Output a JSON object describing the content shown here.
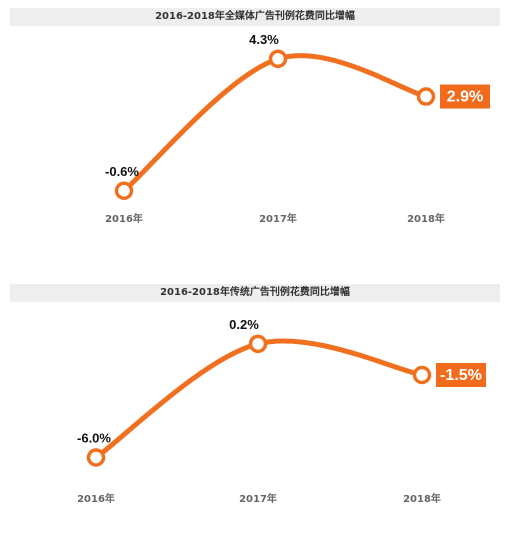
{
  "chart_data": [
    {
      "type": "line",
      "title": "2016-2018年全媒体广告刊例花费同比增幅",
      "categories": [
        "2016年",
        "2017年",
        "2018年"
      ],
      "values": [
        -0.6,
        4.3,
        2.9
      ],
      "data_labels": [
        "-0.6%",
        "4.3%",
        "2.9%"
      ],
      "highlight_index": 2,
      "ylim": [
        -1.5,
        5.0
      ],
      "grid": false,
      "xlabel": "",
      "ylabel": ""
    },
    {
      "type": "line",
      "title": "2016-2018年传统广告刊例花费同比增幅",
      "categories": [
        "2016年",
        "2017年",
        "2018年"
      ],
      "values": [
        -6.0,
        0.2,
        -1.5
      ],
      "data_labels": [
        "-6.0%",
        "0.2%",
        "-1.5%"
      ],
      "highlight_index": 2,
      "ylim": [
        -7.5,
        1.5
      ],
      "grid": false,
      "xlabel": "",
      "ylabel": ""
    }
  ],
  "colors": {
    "line": "#f07020",
    "highlight_bg": "#f26a1b",
    "label": "#111111",
    "tick": "#666666",
    "title_bg": "#eeeeee"
  }
}
